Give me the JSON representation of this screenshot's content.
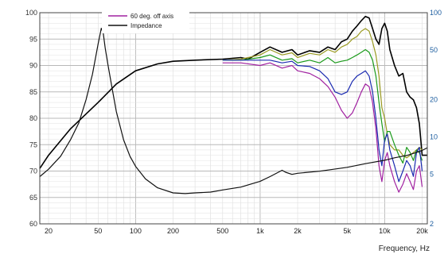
{
  "chart_data": {
    "type": "line",
    "title": "",
    "xlabel": "Frequency, Hz",
    "ylabel": "",
    "x_scale": "log",
    "xlim": [
      17,
      22000
    ],
    "ylim": [
      60,
      100
    ],
    "y2lim": [
      2,
      100
    ],
    "y2_scale": "log",
    "grid": true,
    "legend_position": "top-left",
    "x_ticks": [
      {
        "value": 20,
        "label": "20"
      },
      {
        "value": 50,
        "label": "50"
      },
      {
        "value": 100,
        "label": "100"
      },
      {
        "value": 200,
        "label": "200"
      },
      {
        "value": 500,
        "label": "500"
      },
      {
        "value": 1000,
        "label": "1k"
      },
      {
        "value": 2000,
        "label": "2k"
      },
      {
        "value": 5000,
        "label": "5k"
      },
      {
        "value": 10000,
        "label": "10k"
      },
      {
        "value": 20000,
        "label": "20k"
      }
    ],
    "y_ticks": [
      60,
      65,
      70,
      75,
      80,
      85,
      90,
      95,
      100
    ],
    "y2_ticks": [
      {
        "value": 2,
        "label": "2"
      },
      {
        "value": 5,
        "label": "5"
      },
      {
        "value": 10,
        "label": "10"
      },
      {
        "value": 20,
        "label": "20"
      },
      {
        "value": 50,
        "label": "50"
      },
      {
        "value": 100,
        "label": "100"
      }
    ],
    "series": [
      {
        "name": "",
        "color": "#000000",
        "axis": "left",
        "x": [
          17,
          20,
          30,
          50,
          70,
          100,
          150,
          200,
          300,
          500,
          700,
          800,
          1000,
          1200,
          1500,
          1800,
          2000,
          2500,
          3000,
          3500,
          4000,
          4500,
          5000,
          5500,
          6000,
          6500,
          7000,
          7500,
          8000,
          8500,
          9000,
          9500,
          10000,
          10500,
          11000,
          12000,
          13000,
          14000,
          15000,
          16000,
          17000,
          18000,
          19000,
          20000,
          22000
        ],
        "y": [
          70.5,
          73,
          78,
          83,
          86.5,
          89,
          90.3,
          90.8,
          91,
          91.2,
          91.5,
          91.2,
          92.5,
          93.5,
          92.5,
          93,
          92,
          92.8,
          92.5,
          93.5,
          93,
          94.5,
          95,
          96.5,
          97.5,
          98.5,
          99.3,
          99,
          97,
          95,
          94,
          97,
          98,
          96.5,
          93,
          90,
          88,
          88.5,
          85,
          84,
          83.5,
          82,
          79,
          73,
          73
        ]
      },
      {
        "name": "",
        "color": "#9a9a22",
        "axis": "left",
        "x": [
          500,
          700,
          1000,
          1200,
          1500,
          1800,
          2000,
          2500,
          3000,
          3500,
          4000,
          4500,
          5000,
          5500,
          6000,
          6500,
          7000,
          7500,
          8000,
          8500,
          9000,
          9500,
          10000,
          10500,
          11000,
          12000,
          13000,
          14000,
          15000,
          16000,
          17000,
          18000,
          19000,
          20000
        ],
        "y": [
          91,
          91.2,
          92,
          93,
          92,
          92.4,
          91.5,
          92.3,
          92,
          93,
          92.5,
          93.5,
          94,
          95,
          95.5,
          96.5,
          97,
          96.5,
          94.5,
          92,
          88,
          82,
          80,
          77,
          75,
          74,
          74,
          73,
          72.5,
          73,
          73.5,
          74,
          74.5,
          74
        ]
      },
      {
        "name": "",
        "color": "#1a9a1a",
        "axis": "left",
        "x": [
          500,
          700,
          1000,
          1200,
          1500,
          1800,
          2000,
          2500,
          3000,
          3500,
          4000,
          4500,
          5000,
          5500,
          6000,
          6500,
          7000,
          7500,
          8000,
          8500,
          9000,
          9500,
          10000,
          10500,
          11000,
          12000,
          13000,
          14000,
          15000,
          16000,
          17000,
          18000,
          19000,
          20000
        ],
        "y": [
          91,
          91,
          91.5,
          92,
          91,
          91.3,
          90.5,
          91,
          90.5,
          91.5,
          90.5,
          90.8,
          91,
          91.5,
          92,
          92.5,
          93,
          92.5,
          91,
          88,
          83,
          79,
          75.5,
          77.5,
          77.5,
          75,
          73,
          71.5,
          74.5,
          73.5,
          72,
          74,
          73.5,
          72
        ]
      },
      {
        "name": "",
        "color": "#1a2ab0",
        "axis": "left",
        "x": [
          500,
          700,
          1000,
          1200,
          1500,
          1800,
          2000,
          2500,
          3000,
          3500,
          4000,
          4500,
          5000,
          5500,
          6000,
          6500,
          7000,
          7500,
          8000,
          8500,
          9000,
          9500,
          10000,
          10500,
          11000,
          12000,
          13000,
          14000,
          15000,
          16000,
          17000,
          18000,
          19000,
          20000
        ],
        "y": [
          91,
          91,
          91,
          91,
          90.5,
          90.8,
          90,
          89.8,
          89,
          87.5,
          85,
          84.5,
          85,
          87,
          88,
          88.5,
          89,
          88,
          85,
          80,
          74,
          71,
          76,
          77,
          74,
          71,
          68,
          70,
          72,
          71,
          69,
          73.5,
          74.5,
          70
        ]
      },
      {
        "name": "60 deg. off axis",
        "color": "#a020a0",
        "axis": "left",
        "x": [
          500,
          700,
          1000,
          1200,
          1500,
          1800,
          2000,
          2500,
          3000,
          3500,
          4000,
          4500,
          5000,
          5500,
          6000,
          6500,
          7000,
          7500,
          8000,
          8500,
          9000,
          9500,
          10000,
          10500,
          11000,
          12000,
          13000,
          14000,
          15000,
          16000,
          17000,
          18000,
          19000,
          20000
        ],
        "y": [
          90.5,
          90.5,
          90,
          90.5,
          89.5,
          90,
          89,
          88.5,
          87.5,
          86,
          84,
          81.5,
          80,
          81,
          83,
          85,
          86.5,
          86,
          83,
          78,
          71,
          68,
          72,
          73.5,
          71,
          68,
          66,
          67.5,
          69.5,
          68,
          66.5,
          70,
          71,
          67
        ]
      },
      {
        "name": "Impedance",
        "color": "#111111",
        "axis": "right",
        "x": [
          17,
          20,
          25,
          30,
          35,
          40,
          45,
          50,
          53,
          55,
          57,
          60,
          65,
          70,
          80,
          90,
          100,
          120,
          150,
          200,
          250,
          300,
          400,
          500,
          700,
          1000,
          1200,
          1400,
          1500,
          1600,
          1800,
          2000,
          3000,
          5000,
          7000,
          10000,
          12000,
          15000,
          18000,
          20000,
          22000
        ],
        "y": [
          4.8,
          5.5,
          7,
          9.5,
          13,
          20,
          32,
          56,
          75,
          68,
          52,
          38,
          24,
          16,
          9.5,
          7,
          5.8,
          4.6,
          3.9,
          3.55,
          3.5,
          3.55,
          3.6,
          3.75,
          3.95,
          4.4,
          4.8,
          5.2,
          5.4,
          5.2,
          5.0,
          5.1,
          5.3,
          5.7,
          6.1,
          6.5,
          6.8,
          7.1,
          7.5,
          7.8,
          8.2
        ]
      }
    ]
  }
}
